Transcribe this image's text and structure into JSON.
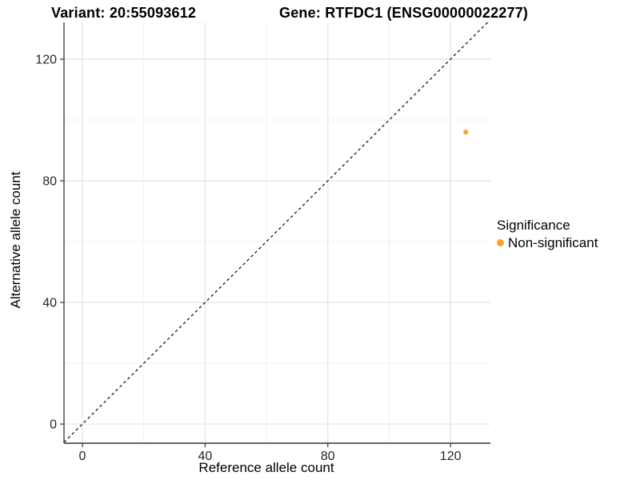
{
  "titles": {
    "variant": "Variant: 20:55093612",
    "gene": "Gene: RTFDC1 (ENSG00000022277)"
  },
  "legend": {
    "title": "Significance",
    "items": [
      {
        "label": "Non-significant",
        "color": "#F9A232"
      }
    ]
  },
  "chart_data": {
    "type": "scatter",
    "xlabel": "Reference allele count",
    "ylabel": "Alternative allele count",
    "xlim": [
      -6,
      133
    ],
    "ylim": [
      -6.3,
      132.1
    ],
    "xticks": [
      0,
      40,
      80,
      120
    ],
    "yticks": [
      0,
      40,
      80,
      120
    ],
    "minor_xticks": [
      20,
      60,
      100
    ],
    "minor_yticks": [
      20,
      60,
      100
    ],
    "grid": true,
    "legend_position": "right",
    "series": [
      {
        "name": "Non-significant",
        "color": "#F9A232",
        "points": [
          {
            "x": 125,
            "y": 96
          }
        ]
      }
    ],
    "reference_line": {
      "type": "identity y=x",
      "style": "dashed",
      "color": "#000000"
    },
    "colors": {
      "major_grid": "#e4e4e4",
      "minor_grid": "#f2f2f2",
      "axis_line": "#333333",
      "tick_text": "#262626"
    }
  }
}
